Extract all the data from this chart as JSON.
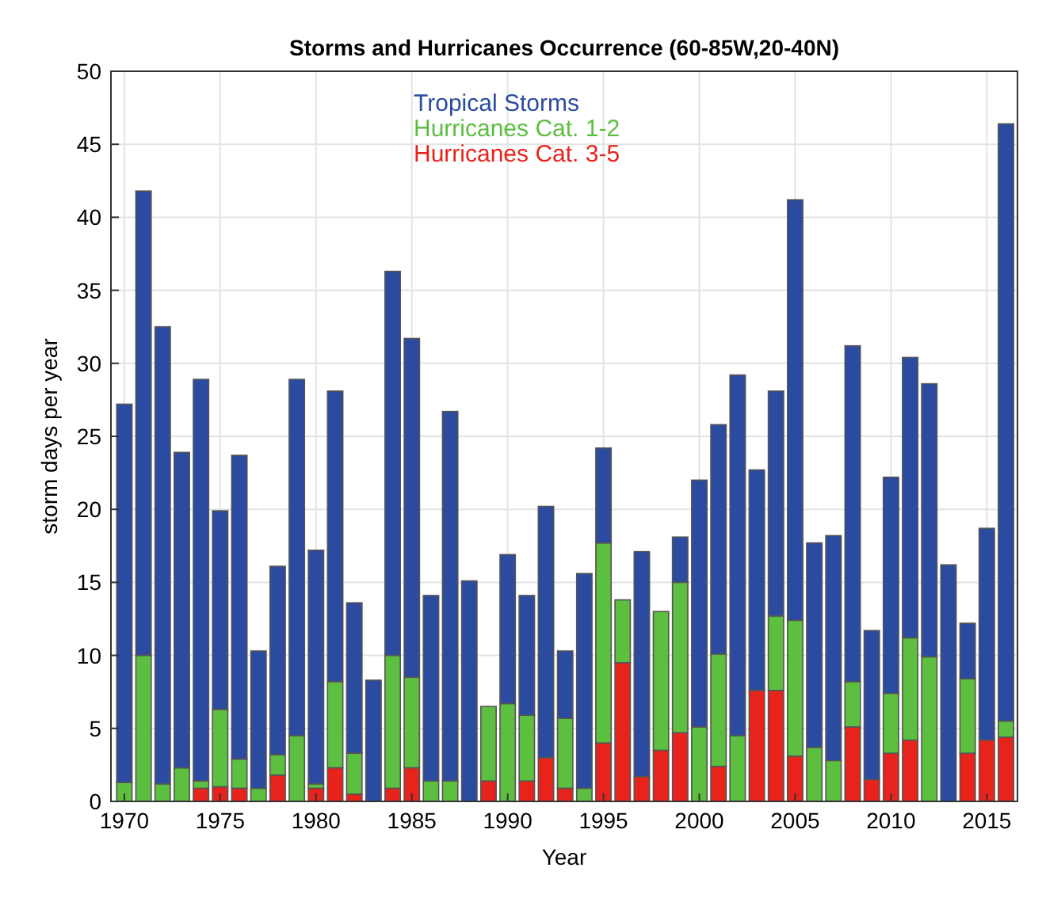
{
  "chart_data": {
    "type": "bar",
    "stacked": true,
    "title": "Storms and Hurricanes Occurrence (60-85W,20-40N)",
    "xlabel": "Year",
    "ylabel": "storm days per year",
    "x": [
      1970,
      1971,
      1972,
      1973,
      1974,
      1975,
      1976,
      1977,
      1978,
      1979,
      1980,
      1981,
      1982,
      1983,
      1984,
      1985,
      1986,
      1987,
      1988,
      1989,
      1990,
      1991,
      1992,
      1993,
      1994,
      1995,
      1996,
      1997,
      1998,
      1999,
      2000,
      2001,
      2002,
      2003,
      2004,
      2005,
      2006,
      2007,
      2008,
      2009,
      2010,
      2011,
      2012,
      2013,
      2014,
      2015,
      2016
    ],
    "series": [
      {
        "name": "Hurricanes Cat. 3-5",
        "color": "#e8231c",
        "values": [
          0,
          0,
          0,
          0,
          0.9,
          1,
          0.9,
          0,
          1.8,
          0,
          0.9,
          2.3,
          0.5,
          0,
          0.9,
          2.3,
          0,
          0,
          0,
          1.4,
          0,
          1.4,
          3,
          0.9,
          0,
          4,
          9.5,
          1.7,
          3.5,
          4.7,
          0,
          2.4,
          0,
          7.6,
          7.6,
          3.1,
          0,
          0,
          5.1,
          1.5,
          3.3,
          4.2,
          0,
          0,
          3.3,
          4.2,
          4.4
        ]
      },
      {
        "name": "Hurricanes Cat. 1-2",
        "color": "#5cbf3f",
        "values": [
          1.3,
          10,
          1.2,
          2.3,
          0.5,
          5.3,
          2,
          0.9,
          1.4,
          4.5,
          0.3,
          5.9,
          2.8,
          0,
          9.1,
          6.2,
          1.4,
          1.4,
          0,
          5.1,
          6.7,
          4.5,
          0,
          4.8,
          0.9,
          13.7,
          4.3,
          0,
          9.5,
          10.3,
          5.1,
          7.7,
          4.5,
          0,
          5.1,
          9.3,
          3.7,
          2.8,
          3.1,
          0,
          4.1,
          7,
          9.9,
          0,
          5.1,
          0,
          1.1
        ]
      },
      {
        "name": "Tropical Storms",
        "color": "#2b4ba0",
        "values": [
          25.9,
          31.8,
          31.3,
          21.6,
          27.5,
          13.6,
          20.8,
          9.4,
          12.9,
          24.4,
          16,
          19.9,
          10.3,
          8.3,
          26.3,
          23.2,
          12.7,
          25.3,
          15.1,
          0,
          10.2,
          8.2,
          17.2,
          4.6,
          14.7,
          6.5,
          0,
          15.4,
          0,
          3.1,
          16.9,
          15.7,
          24.7,
          15.1,
          15.4,
          28.8,
          14,
          15.4,
          23,
          10.2,
          14.8,
          19.2,
          18.7,
          16.2,
          3.8,
          14.5,
          40.9
        ]
      }
    ],
    "xlim": [
      1969.3,
      2016.6
    ],
    "xticks": [
      1970,
      1975,
      1980,
      1985,
      1990,
      1995,
      2000,
      2005,
      2010,
      2015
    ],
    "ylim": [
      0,
      50
    ],
    "yticks": [
      0,
      5,
      10,
      15,
      20,
      25,
      30,
      35,
      40,
      45,
      50
    ],
    "grid": true,
    "legend": "top"
  }
}
